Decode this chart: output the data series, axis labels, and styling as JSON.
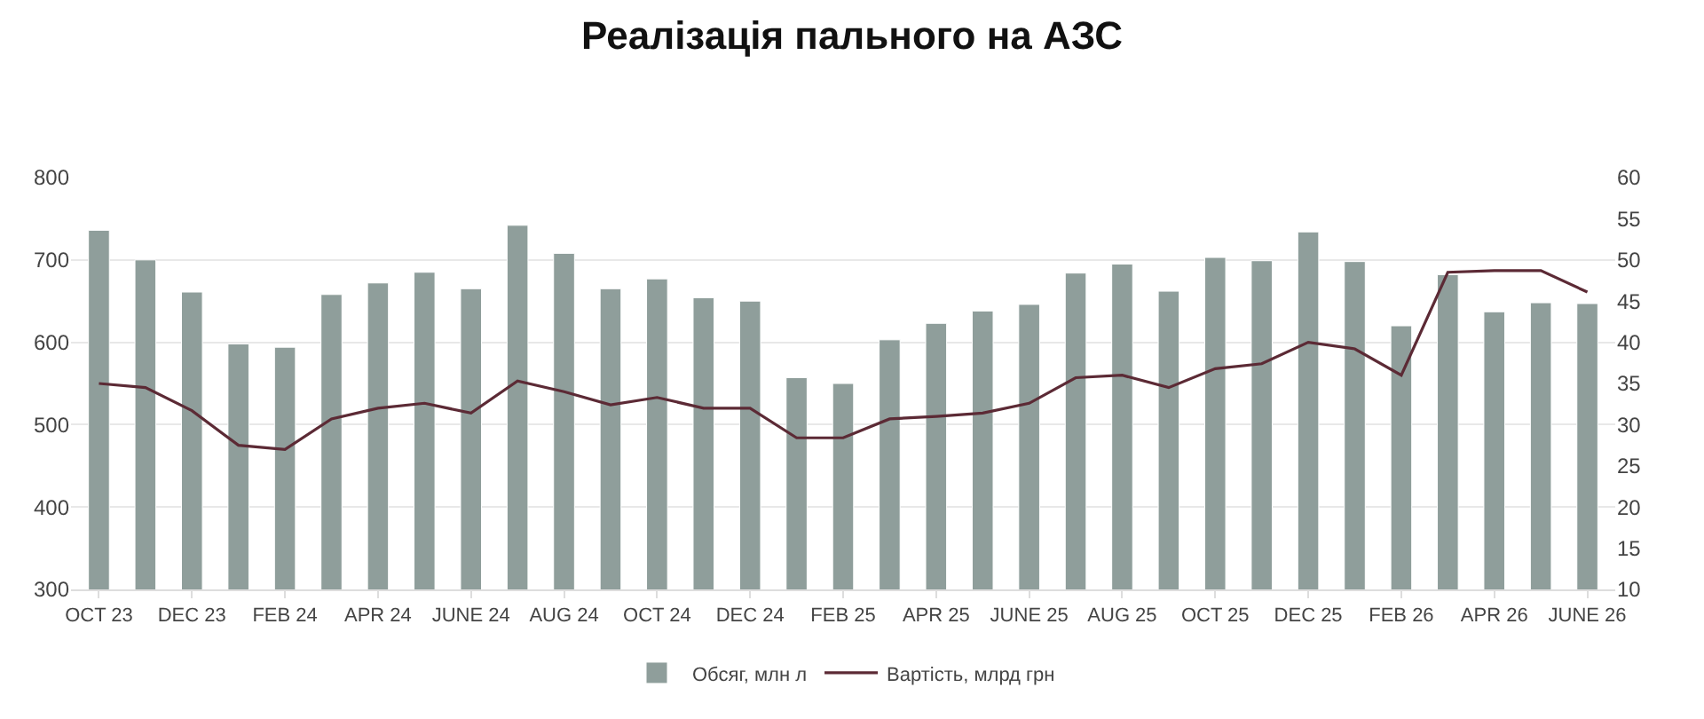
{
  "chart_data": {
    "type": "bar",
    "title": "Реалізація пального на АЗС",
    "categories": [
      "OCT 23",
      null,
      "DEC 23",
      null,
      "FEB 24",
      null,
      "APR 24",
      null,
      "JUNE 24",
      null,
      "AUG 24",
      null,
      "OCT 24",
      null,
      "DEC 24",
      null,
      "FEB 25",
      null,
      "APR 25",
      null,
      "JUNE 25",
      null,
      "AUG 25",
      null,
      "OCT 25",
      null,
      "DEC 25",
      null,
      "FEB 26",
      null,
      "APR 26",
      null,
      "JUNE 26"
    ],
    "series": [
      {
        "name": "Обсяг, млн л",
        "color": "#8f9e9b",
        "values": [
          736,
          700,
          661,
          598,
          594,
          658,
          672,
          685,
          665,
          742,
          708,
          665,
          677,
          654,
          650,
          557,
          550,
          603,
          623,
          638,
          646,
          684,
          695,
          662,
          703,
          699,
          734,
          698,
          620,
          682,
          637,
          648,
          647
        ]
      },
      {
        "name": "Вартість, млрд грн",
        "type": "line",
        "axis": "y2",
        "color": "#5c2a35",
        "values": [
          35.0,
          34.5,
          31.7,
          27.5,
          27.0,
          30.7,
          32.0,
          32.6,
          31.4,
          35.3,
          34.0,
          32.4,
          33.3,
          32.0,
          32.0,
          28.4,
          28.4,
          30.7,
          31.0,
          31.4,
          32.6,
          35.7,
          36.0,
          34.5,
          36.8,
          37.4,
          40.0,
          39.2,
          36.0,
          48.5,
          48.7,
          48.7,
          46.1
        ]
      }
    ],
    "ylim": [
      300,
      800
    ],
    "yticks": [
      300,
      400,
      500,
      600,
      700,
      800
    ],
    "y2lim": [
      10,
      60
    ],
    "y2ticks": [
      10,
      15,
      20,
      25,
      30,
      35,
      40,
      45,
      50,
      55,
      60
    ],
    "grid": "y",
    "legend": "bottom",
    "line_style": "solid",
    "marker": "none"
  }
}
